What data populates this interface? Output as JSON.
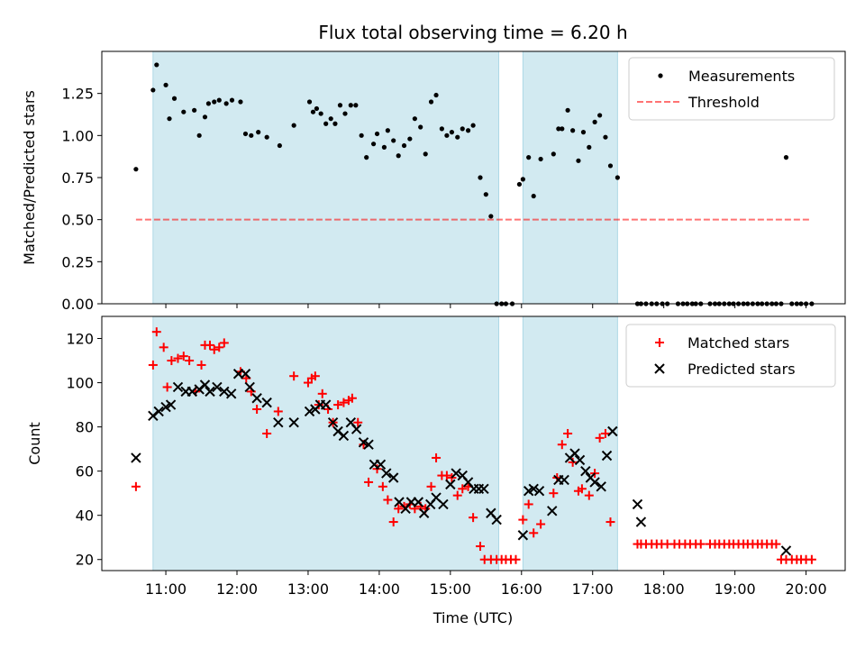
{
  "colors": {
    "shade": "#add8e6",
    "measurement": "#000000",
    "threshold": "#ff0000",
    "matched": "#ff0000",
    "predicted": "#000000"
  },
  "chart_data": [
    {
      "type": "scatter",
      "title": "Flux total observing time = 6.20 h",
      "xlabel": "",
      "ylabel": "Matched/Predicted stars",
      "x_unit": "hours (UTC)",
      "xlim": [
        10.1,
        20.55
      ],
      "ylim": [
        0,
        1.5
      ],
      "yticks": [
        0.0,
        0.25,
        0.5,
        0.75,
        1.0,
        1.25
      ],
      "ytick_labels": [
        "0.00",
        "0.25",
        "0.50",
        "0.75",
        "1.00",
        "1.25"
      ],
      "grid": false,
      "shaded_intervals": [
        [
          10.82,
          15.68
        ],
        [
          16.02,
          17.35
        ]
      ],
      "legend_position": "top-right",
      "series": [
        {
          "name": "Measurements",
          "kind": "points",
          "x": [
            10.58,
            10.82,
            10.87,
            11.0,
            11.05,
            11.12,
            11.25,
            11.4,
            11.47,
            11.55,
            11.6,
            11.68,
            11.75,
            11.85,
            11.93,
            12.05,
            12.12,
            12.2,
            12.3,
            12.42,
            12.6,
            12.8,
            13.02,
            13.07,
            13.12,
            13.18,
            13.25,
            13.32,
            13.38,
            13.45,
            13.52,
            13.6,
            13.67,
            13.75,
            13.82,
            13.92,
            13.97,
            14.07,
            14.12,
            14.2,
            14.27,
            14.35,
            14.43,
            14.5,
            14.58,
            14.65,
            14.73,
            14.8,
            14.88,
            14.95,
            15.02,
            15.1,
            15.17,
            15.25,
            15.32,
            15.42,
            15.5,
            15.57,
            15.65,
            15.72,
            15.78,
            15.87,
            15.97,
            16.02,
            16.1,
            16.17,
            16.27,
            16.45,
            16.52,
            16.57,
            16.65,
            16.72,
            16.8,
            16.87,
            16.95,
            17.03,
            17.1,
            17.18,
            17.25,
            17.35,
            17.63,
            17.68,
            17.75,
            17.83,
            17.9,
            17.98,
            18.05,
            18.2,
            18.27,
            18.33,
            18.4,
            18.45,
            18.52,
            18.65,
            18.72,
            18.78,
            18.85,
            18.92,
            18.98,
            19.05,
            19.12,
            19.18,
            19.25,
            19.32,
            19.38,
            19.45,
            19.52,
            19.58,
            19.65,
            19.72,
            19.8,
            19.87,
            19.93,
            20.0,
            20.08
          ],
          "y": [
            0.8,
            1.27,
            1.42,
            1.3,
            1.1,
            1.22,
            1.14,
            1.15,
            1.0,
            1.11,
            1.19,
            1.2,
            1.21,
            1.19,
            1.21,
            1.2,
            1.01,
            1.0,
            1.02,
            0.99,
            0.94,
            1.06,
            1.2,
            1.14,
            1.16,
            1.13,
            1.07,
            1.1,
            1.07,
            1.18,
            1.13,
            1.18,
            1.18,
            1.0,
            0.87,
            0.95,
            1.01,
            0.93,
            1.03,
            0.97,
            0.88,
            0.94,
            0.98,
            1.1,
            1.05,
            0.89,
            1.2,
            1.24,
            1.04,
            1.0,
            1.02,
            0.99,
            1.04,
            1.03,
            1.06,
            0.75,
            0.65,
            0.52,
            0.0,
            0.0,
            0.0,
            0.0,
            0.71,
            0.74,
            0.87,
            0.64,
            0.86,
            0.89,
            1.04,
            1.04,
            1.15,
            1.03,
            0.85,
            1.02,
            0.93,
            1.08,
            1.12,
            0.99,
            0.82,
            0.75,
            0.0,
            0.0,
            0.0,
            0.0,
            0.0,
            0.0,
            0.0,
            0.0,
            0.0,
            0.0,
            0.0,
            0.0,
            0.0,
            0.0,
            0.0,
            0.0,
            0.0,
            0.0,
            0.0,
            0.0,
            0.0,
            0.0,
            0.0,
            0.0,
            0.0,
            0.0,
            0.0,
            0.0,
            0.0,
            0.87,
            0.0,
            0.0,
            0.0,
            0.0,
            0.0
          ]
        },
        {
          "name": "Threshold",
          "kind": "dashed-line",
          "x": [
            10.58,
            20.08
          ],
          "y": [
            0.5,
            0.5
          ]
        }
      ]
    },
    {
      "type": "scatter",
      "title": "",
      "xlabel": "Time (UTC)",
      "ylabel": "Count",
      "x_unit": "hours (UTC)",
      "xlim": [
        10.1,
        20.55
      ],
      "ylim": [
        15,
        130
      ],
      "xticks": [
        11,
        12,
        13,
        14,
        15,
        16,
        17,
        18,
        19,
        20
      ],
      "xtick_labels": [
        "11:00",
        "12:00",
        "13:00",
        "14:00",
        "15:00",
        "16:00",
        "17:00",
        "18:00",
        "19:00",
        "20:00"
      ],
      "yticks": [
        20,
        40,
        60,
        80,
        100,
        120
      ],
      "ytick_labels": [
        "20",
        "40",
        "60",
        "80",
        "100",
        "120"
      ],
      "grid": false,
      "shaded_intervals": [
        [
          10.82,
          15.68
        ],
        [
          16.02,
          17.35
        ]
      ],
      "legend_position": "top-right",
      "series": [
        {
          "name": "Matched stars",
          "marker": "plus",
          "x": [
            10.58,
            10.82,
            10.87,
            10.97,
            11.02,
            11.08,
            11.17,
            11.25,
            11.33,
            11.42,
            11.5,
            11.55,
            11.62,
            11.68,
            11.75,
            11.82,
            12.05,
            12.13,
            12.2,
            12.28,
            12.42,
            12.58,
            12.8,
            13.0,
            13.05,
            13.1,
            13.15,
            13.2,
            13.28,
            13.35,
            13.42,
            13.5,
            13.57,
            13.62,
            13.7,
            13.78,
            13.85,
            13.97,
            14.05,
            14.12,
            14.2,
            14.27,
            14.35,
            14.43,
            14.5,
            14.58,
            14.65,
            14.73,
            14.8,
            14.88,
            14.95,
            15.02,
            15.1,
            15.17,
            15.25,
            15.32,
            15.42,
            15.48,
            15.57,
            15.65,
            15.72,
            15.78,
            15.85,
            15.92,
            16.02,
            16.1,
            16.17,
            16.27,
            16.45,
            16.5,
            16.57,
            16.65,
            16.72,
            16.8,
            16.85,
            16.95,
            17.03,
            17.1,
            17.18,
            17.25,
            17.63,
            17.68,
            17.75,
            17.83,
            17.9,
            17.97,
            18.05,
            18.15,
            18.22,
            18.3,
            18.37,
            18.45,
            18.52,
            18.65,
            18.72,
            18.78,
            18.85,
            18.92,
            18.98,
            19.05,
            19.12,
            19.18,
            19.25,
            19.32,
            19.38,
            19.45,
            19.52,
            19.58,
            19.65,
            19.72,
            19.8,
            19.87,
            19.93,
            20.0,
            20.08
          ],
          "y": [
            53,
            108,
            123,
            116,
            98,
            110,
            111,
            112,
            110,
            96,
            108,
            117,
            117,
            115,
            116,
            118,
            105,
            102,
            96,
            88,
            77,
            87,
            103,
            100,
            102,
            103,
            90,
            95,
            88,
            82,
            90,
            91,
            92,
            93,
            82,
            72,
            55,
            61,
            53,
            47,
            37,
            43,
            44,
            45,
            43,
            44,
            43,
            53,
            66,
            58,
            58,
            57,
            49,
            52,
            53,
            39,
            26,
            20,
            20,
            20,
            20,
            20,
            20,
            20,
            38,
            45,
            32,
            36,
            50,
            57,
            72,
            77,
            64,
            51,
            52,
            49,
            59,
            75,
            77,
            37,
            27,
            27,
            27,
            27,
            27,
            27,
            27,
            27,
            27,
            27,
            27,
            27,
            27,
            27,
            27,
            27,
            27,
            27,
            27,
            27,
            27,
            27,
            27,
            27,
            27,
            27,
            27,
            27,
            20,
            20,
            20,
            20,
            20,
            20,
            20
          ]
        },
        {
          "name": "Predicted stars",
          "marker": "x",
          "x": [
            10.58,
            10.82,
            10.9,
            11.0,
            11.07,
            11.17,
            11.28,
            11.37,
            11.47,
            11.55,
            11.62,
            11.72,
            11.82,
            11.92,
            12.02,
            12.12,
            12.18,
            12.28,
            12.42,
            12.58,
            12.8,
            13.02,
            13.1,
            13.17,
            13.25,
            13.35,
            13.42,
            13.5,
            13.6,
            13.68,
            13.78,
            13.85,
            13.93,
            14.02,
            14.1,
            14.2,
            14.28,
            14.37,
            14.45,
            14.55,
            14.63,
            14.72,
            14.8,
            14.9,
            15.0,
            15.08,
            15.17,
            15.25,
            15.33,
            15.4,
            15.47,
            15.57,
            15.65,
            16.02,
            16.1,
            16.17,
            16.25,
            16.43,
            16.52,
            16.6,
            16.68,
            16.75,
            16.82,
            16.9,
            16.97,
            17.03,
            17.12,
            17.2,
            17.28,
            17.63,
            17.68,
            19.72
          ],
          "y": [
            66,
            85,
            87,
            89,
            90,
            98,
            96,
            96,
            97,
            99,
            96,
            98,
            96,
            95,
            104,
            104,
            98,
            93,
            91,
            82,
            82,
            87,
            88,
            90,
            90,
            82,
            78,
            76,
            82,
            79,
            73,
            72,
            63,
            63,
            59,
            57,
            46,
            43,
            46,
            46,
            41,
            45,
            48,
            45,
            54,
            59,
            58,
            55,
            52,
            52,
            52,
            41,
            38,
            31,
            51,
            52,
            51,
            42,
            56,
            56,
            66,
            68,
            65,
            60,
            57,
            55,
            53,
            67,
            78,
            45,
            37,
            24
          ]
        }
      ]
    }
  ]
}
